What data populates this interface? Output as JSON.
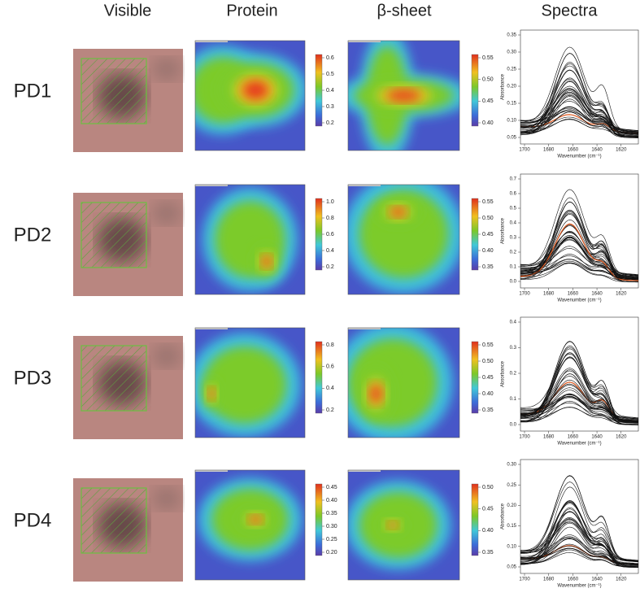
{
  "columns": [
    "Visible",
    "Protein",
    "β-sheet",
    "Spectra"
  ],
  "spectra_ylabel": "Absorbance",
  "spectra_xlabel": "Wavenumber (cm⁻¹)",
  "rows": [
    {
      "label": "PD1",
      "protein_colorbar": [
        "0.6",
        "0.5",
        "0.4",
        "0.3",
        "0.2"
      ],
      "beta_colorbar": [
        "0.55",
        "0.50",
        "0.45",
        "0.40"
      ],
      "spectra_yticks": [
        "0.35",
        "0.30",
        "0.25",
        "0.20",
        "0.15",
        "0.10",
        "0.05"
      ],
      "spectra_xticks": [
        "1700",
        "1680",
        "1660",
        "1640",
        "1620"
      ]
    },
    {
      "label": "PD2",
      "protein_colorbar": [
        "1.0",
        "0.8",
        "0.6",
        "0.4",
        "0.2"
      ],
      "beta_colorbar": [
        "0.55",
        "0.50",
        "0.45",
        "0.40",
        "0.35"
      ],
      "spectra_yticks": [
        "0.7",
        "0.6",
        "0.5",
        "0.4",
        "0.3",
        "0.2",
        "0.1",
        "0.0"
      ],
      "spectra_xticks": [
        "1700",
        "1680",
        "1660",
        "1640",
        "1620"
      ]
    },
    {
      "label": "PD3",
      "protein_colorbar": [
        "0.8",
        "0.6",
        "0.4",
        "0.2"
      ],
      "beta_colorbar": [
        "0.55",
        "0.50",
        "0.45",
        "0.40",
        "0.35"
      ],
      "spectra_yticks": [
        "0.4",
        "0.3",
        "0.2",
        "0.1",
        "0.0"
      ],
      "spectra_xticks": [
        "1700",
        "1680",
        "1660",
        "1640",
        "1620"
      ]
    },
    {
      "label": "PD4",
      "protein_colorbar": [
        "0.45",
        "0.40",
        "0.35",
        "0.30",
        "0.25",
        "0.20"
      ],
      "beta_colorbar": [
        "0.50",
        "0.45",
        "0.40",
        "0.35"
      ],
      "spectra_yticks": [
        "0.30",
        "0.25",
        "0.20",
        "0.15",
        "0.10",
        "0.05"
      ],
      "spectra_xticks": [
        "1700",
        "1680",
        "1660",
        "1640",
        "1620"
      ]
    }
  ]
}
